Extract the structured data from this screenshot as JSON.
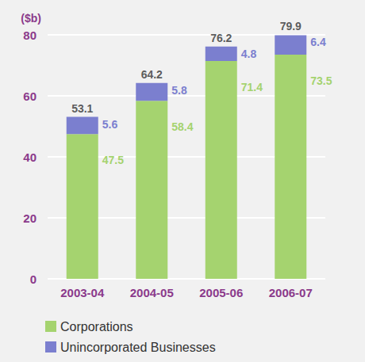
{
  "chart_data": {
    "type": "bar",
    "stacked": true,
    "y_label": "($b)",
    "categories": [
      "2003-04",
      "2004-05",
      "2005-06",
      "2006-07"
    ],
    "series": [
      {
        "name": "Corporations",
        "color": "#a5d36f",
        "values": [
          47.5,
          58.4,
          71.4,
          73.5
        ]
      },
      {
        "name": "Unincorporated Businesses",
        "color": "#7b7fcf",
        "values": [
          5.6,
          5.8,
          4.8,
          6.4
        ]
      }
    ],
    "totals": [
      53.1,
      64.2,
      76.2,
      79.9
    ],
    "ylim": [
      0,
      80
    ],
    "yticks": [
      0,
      20,
      40,
      60,
      80
    ],
    "grid": true,
    "data_labels": true,
    "legend": "bottom-left"
  }
}
